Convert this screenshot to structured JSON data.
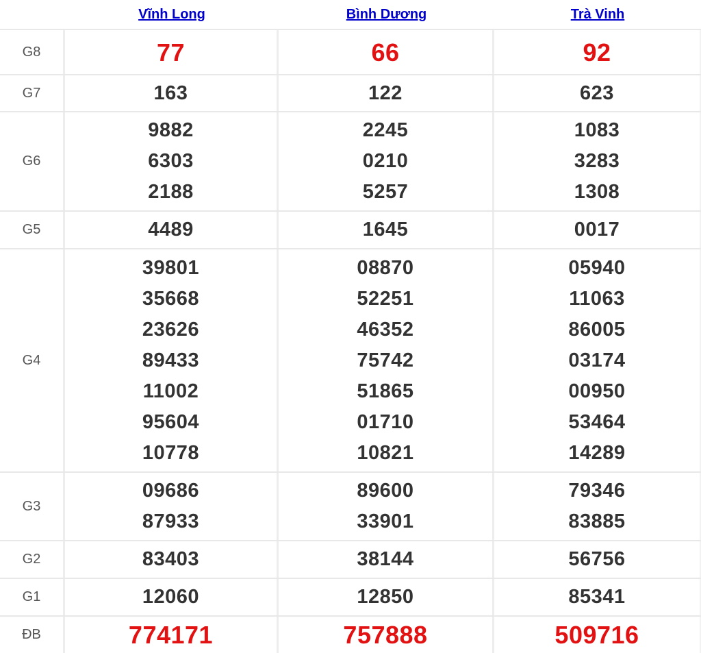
{
  "table": {
    "header": {
      "columns": [
        "Vĩnh Long",
        "Bình Dương",
        "Trà Vinh"
      ]
    },
    "rows": [
      {
        "label": "G8",
        "highlight": true,
        "cells": [
          [
            "77"
          ],
          [
            "66"
          ],
          [
            "92"
          ]
        ]
      },
      {
        "label": "G7",
        "highlight": false,
        "cells": [
          [
            "163"
          ],
          [
            "122"
          ],
          [
            "623"
          ]
        ]
      },
      {
        "label": "G6",
        "highlight": false,
        "cells": [
          [
            "9882",
            "6303",
            "2188"
          ],
          [
            "2245",
            "0210",
            "5257"
          ],
          [
            "1083",
            "3283",
            "1308"
          ]
        ]
      },
      {
        "label": "G5",
        "highlight": false,
        "cells": [
          [
            "4489"
          ],
          [
            "1645"
          ],
          [
            "0017"
          ]
        ]
      },
      {
        "label": "G4",
        "highlight": false,
        "cells": [
          [
            "39801",
            "35668",
            "23626",
            "89433",
            "11002",
            "95604",
            "10778"
          ],
          [
            "08870",
            "52251",
            "46352",
            "75742",
            "51865",
            "01710",
            "10821"
          ],
          [
            "05940",
            "11063",
            "86005",
            "03174",
            "00950",
            "53464",
            "14289"
          ]
        ]
      },
      {
        "label": "G3",
        "highlight": false,
        "cells": [
          [
            "09686",
            "87933"
          ],
          [
            "89600",
            "33901"
          ],
          [
            "79346",
            "83885"
          ]
        ]
      },
      {
        "label": "G2",
        "highlight": false,
        "cells": [
          [
            "83403"
          ],
          [
            "38144"
          ],
          [
            "56756"
          ]
        ]
      },
      {
        "label": "G1",
        "highlight": false,
        "cells": [
          [
            "12060"
          ],
          [
            "12850"
          ],
          [
            "85341"
          ]
        ]
      },
      {
        "label": "ĐB",
        "highlight": true,
        "cells": [
          [
            "774171"
          ],
          [
            "757888"
          ],
          [
            "509716"
          ]
        ]
      }
    ],
    "colors": {
      "highlight": "#e21212",
      "number": "#333333",
      "label": "#555555",
      "link": "#0000cc",
      "border-h": "#e8e8e8",
      "border-v": "#ededed",
      "bg": "#ffffff"
    }
  }
}
